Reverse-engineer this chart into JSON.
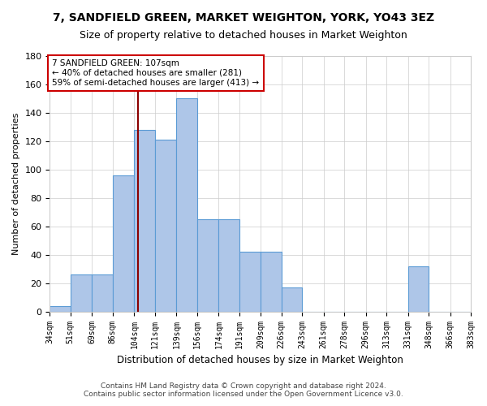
{
  "title": "7, SANDFIELD GREEN, MARKET WEIGHTON, YORK, YO43 3EZ",
  "subtitle": "Size of property relative to detached houses in Market Weighton",
  "xlabel": "Distribution of detached houses by size in Market Weighton",
  "ylabel": "Number of detached properties",
  "bar_edges": [
    34,
    51,
    69,
    86,
    104,
    121,
    139,
    156,
    174,
    191,
    209,
    226,
    243,
    261,
    278,
    296,
    313,
    331,
    348,
    366,
    383
  ],
  "bar_heights": [
    4,
    26,
    26,
    96,
    128,
    121,
    150,
    65,
    65,
    42,
    42,
    17,
    0,
    0,
    0,
    0,
    0,
    32,
    0,
    0
  ],
  "bar_color": "#aec6e8",
  "bar_edge_color": "#5b9bd5",
  "vline_x": 107,
  "vline_color": "#8b0000",
  "annotation_text": "7 SANDFIELD GREEN: 107sqm\n← 40% of detached houses are smaller (281)\n59% of semi-detached houses are larger (413) →",
  "annotation_box_color": "#ffffff",
  "annotation_box_edge_color": "#cc0000",
  "ylim": [
    0,
    180
  ],
  "yticks": [
    0,
    20,
    40,
    60,
    80,
    100,
    120,
    140,
    160,
    180
  ],
  "xtick_labels": [
    "34sqm",
    "51sqm",
    "69sqm",
    "86sqm",
    "104sqm",
    "121sqm",
    "139sqm",
    "156sqm",
    "174sqm",
    "191sqm",
    "209sqm",
    "226sqm",
    "243sqm",
    "261sqm",
    "278sqm",
    "296sqm",
    "313sqm",
    "331sqm",
    "348sqm",
    "366sqm",
    "383sqm"
  ],
  "footer_line1": "Contains HM Land Registry data © Crown copyright and database right 2024.",
  "footer_line2": "Contains public sector information licensed under the Open Government Licence v3.0.",
  "background_color": "#ffffff",
  "grid_color": "#cccccc"
}
